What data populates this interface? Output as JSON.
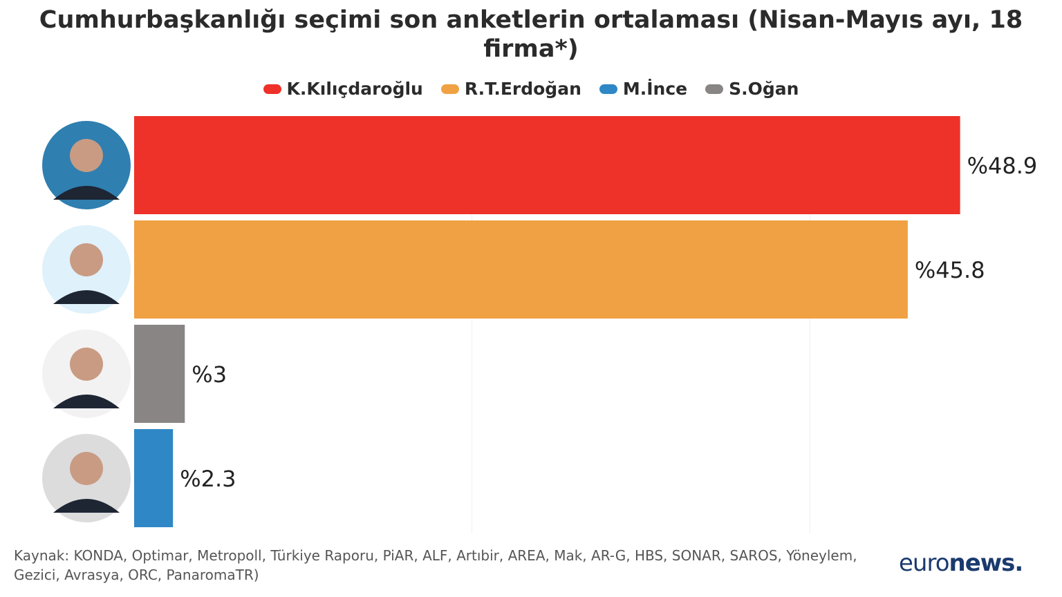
{
  "title": "Cumhurbaşkanlığı seçimi son anketlerin ortalaması (Nisan-Mayıs ayı, 18 firma*)",
  "legend": [
    {
      "name": "K.Kılıçdaroğlu",
      "color": "#ee3129"
    },
    {
      "name": "R.T.Erdoğan",
      "color": "#f0a143"
    },
    {
      "name": "M.İnce",
      "color": "#2f87c6"
    },
    {
      "name": "S.Oğan",
      "color": "#8a8585"
    }
  ],
  "chart_data": {
    "type": "bar",
    "orientation": "horizontal",
    "categories": [
      "K.Kılıçdaroğlu",
      "R.T.Erdoğan",
      "S.Oğan",
      "M.İnce"
    ],
    "values": [
      48.9,
      45.8,
      3,
      2.3
    ],
    "data_labels": [
      "%48.9",
      "%45.8",
      "%3",
      "%2.3"
    ],
    "colors": [
      "#ee3129",
      "#f0a143",
      "#8a8585",
      "#2f87c6"
    ],
    "xlim": [
      0,
      50
    ],
    "grid": true,
    "legend_position": "top-center"
  },
  "source": "Kaynak: KONDA, Optimar, Metropoll, Türkiye Raporu, PiAR, ALF, Artıbir, AREA, Mak, AR-G, HBS, SONAR, SAROS, Yöneylem, Gezici, Avrasya, ORC, PanaromaTR)",
  "logo": {
    "part1": "euro",
    "part2": "news",
    "dot": "."
  }
}
